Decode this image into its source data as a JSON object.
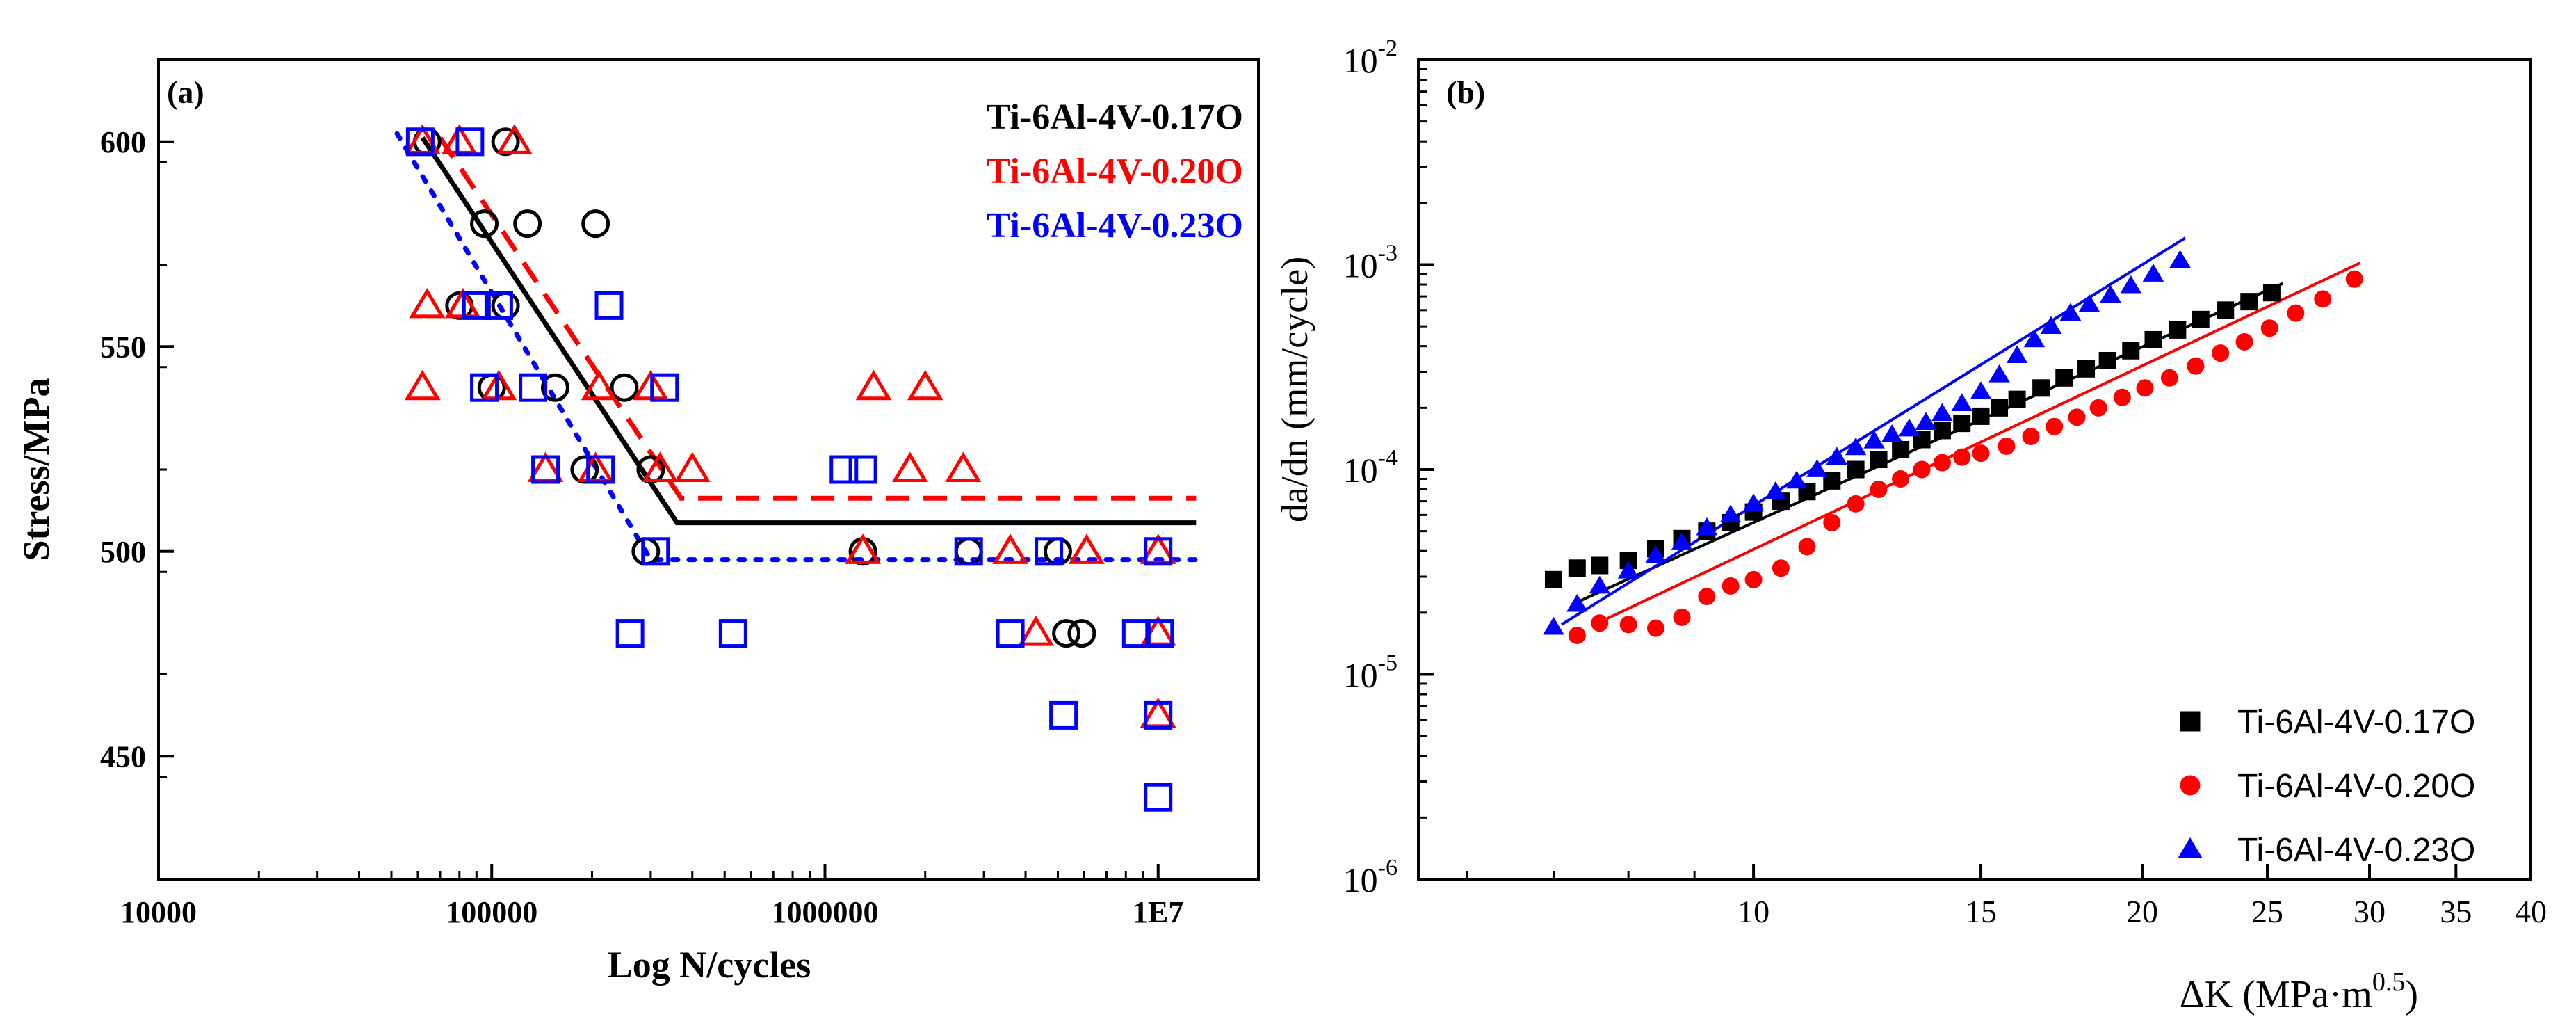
{
  "chart_data": [
    {
      "type": "scatter",
      "panel_label": "(a)",
      "title": "",
      "xlabel": "Log N/cycles",
      "ylabel": "Stress/MPa",
      "x_scale": "log",
      "xlim": [
        10000,
        20000000
      ],
      "ylim": [
        420,
        620
      ],
      "x_tick_values": [
        10000,
        100000,
        1000000,
        10000000
      ],
      "x_tick_labels": [
        "10000",
        "100000",
        "1000000",
        "1E7"
      ],
      "y_ticks": [
        450,
        500,
        550,
        600
      ],
      "grid": false,
      "legend_placement": "top-right",
      "series": [
        {
          "name": "Ti-6Al-4V-0.17O",
          "color": "#000000",
          "marker": "circle-open",
          "line_style": "solid",
          "points": [
            [
              64000,
              600
            ],
            [
              110000,
              600
            ],
            [
              95000,
              580
            ],
            [
              128000,
              580
            ],
            [
              205000,
              580
            ],
            [
              80000,
              560
            ],
            [
              110000,
              560
            ],
            [
              100000,
              540
            ],
            [
              155000,
              540
            ],
            [
              250000,
              540
            ],
            [
              190000,
              520
            ],
            [
              300000,
              520
            ],
            [
              290000,
              500
            ],
            [
              1300000,
              500
            ],
            [
              2700000,
              500
            ],
            [
              5000000,
              500
            ],
            [
              5300000,
              480
            ],
            [
              5900000,
              480
            ]
          ],
          "fit_line": [
            [
              62000,
              601
            ],
            [
              360000,
              507
            ],
            [
              13000000,
              507
            ]
          ]
        },
        {
          "name": "Ti-6Al-4V-0.20O",
          "color": "#ff0000",
          "marker": "triangle-open",
          "line_style": "dashed",
          "points": [
            [
              62000,
              600
            ],
            [
              80000,
              600
            ],
            [
              117000,
              600
            ],
            [
              64000,
              560
            ],
            [
              82000,
              560
            ],
            [
              62000,
              540
            ],
            [
              105000,
              540
            ],
            [
              210000,
              540
            ],
            [
              300000,
              540
            ],
            [
              1400000,
              540
            ],
            [
              2000000,
              540
            ],
            [
              145000,
              520
            ],
            [
              205000,
              520
            ],
            [
              320000,
              520
            ],
            [
              400000,
              520
            ],
            [
              1800000,
              520
            ],
            [
              2600000,
              520
            ],
            [
              1300000,
              500
            ],
            [
              3600000,
              500
            ],
            [
              6100000,
              500
            ],
            [
              10000000,
              500
            ],
            [
              4300000,
              480
            ],
            [
              10000000,
              480
            ],
            [
              10000000,
              460
            ]
          ],
          "fit_line": [
            [
              70000,
              601
            ],
            [
              370000,
              513
            ],
            [
              13000000,
              513
            ]
          ]
        },
        {
          "name": "Ti-6Al-4V-0.23O",
          "color": "#0000ff",
          "marker": "square-open",
          "line_style": "dotted",
          "points": [
            [
              61000,
              600
            ],
            [
              86000,
              600
            ],
            [
              90000,
              560
            ],
            [
              105000,
              560
            ],
            [
              225000,
              560
            ],
            [
              95000,
              540
            ],
            [
              133000,
              540
            ],
            [
              330000,
              540
            ],
            [
              145000,
              520
            ],
            [
              212000,
              520
            ],
            [
              1140000,
              520
            ],
            [
              1300000,
              520
            ],
            [
              310000,
              500
            ],
            [
              2700000,
              500
            ],
            [
              4700000,
              500
            ],
            [
              10000000,
              500
            ],
            [
              260000,
              480
            ],
            [
              530000,
              480
            ],
            [
              3600000,
              480
            ],
            [
              8600000,
              480
            ],
            [
              10100000,
              480
            ],
            [
              5200000,
              460
            ],
            [
              10000000,
              460
            ],
            [
              10000000,
              440
            ]
          ],
          "fit_line": [
            [
              52000,
              602
            ],
            [
              300000,
              498
            ],
            [
              13000000,
              498
            ]
          ]
        }
      ]
    },
    {
      "type": "scatter",
      "panel_label": "(b)",
      "title": "",
      "xlabel": "ΔK (MPa·m",
      "xlabel_superscript": "0.5",
      "xlabel_suffix": ")",
      "ylabel": "da/dn  (mm/cycle)",
      "x_scale": "log",
      "y_scale": "log",
      "xlim": [
        5.5,
        40
      ],
      "ylim": [
        1e-06,
        0.01
      ],
      "x_tick_values": [
        10,
        15,
        20,
        25,
        30,
        35,
        40
      ],
      "x_tick_labels": [
        "10",
        "15",
        "20",
        "25",
        "30",
        "35",
        "40"
      ],
      "y_tick_values": [
        1e-06,
        1e-05,
        0.0001,
        0.001,
        0.01
      ],
      "y_tick_base": "10",
      "y_tick_exponents": [
        "-6",
        "-5",
        "-4",
        "-3",
        "-2"
      ],
      "grid": false,
      "legend_placement": "bottom-right",
      "series": [
        {
          "name": "Ti-6Al-4V-0.17O",
          "color": "#000000",
          "marker": "square-filled",
          "points": [
            [
              7.0,
              2.9e-05
            ],
            [
              7.3,
              3.3e-05
            ],
            [
              7.6,
              3.4e-05
            ],
            [
              8.0,
              3.6e-05
            ],
            [
              8.4,
              4.1e-05
            ],
            [
              8.8,
              4.6e-05
            ],
            [
              9.2,
              5e-05
            ],
            [
              9.6,
              5.5e-05
            ],
            [
              10.0,
              6.2e-05
            ],
            [
              10.5,
              7e-05
            ],
            [
              11.0,
              7.8e-05
            ],
            [
              11.5,
              8.8e-05
            ],
            [
              12.0,
              0.0001
            ],
            [
              12.5,
              0.000112
            ],
            [
              13.0,
              0.000125
            ],
            [
              13.5,
              0.00014
            ],
            [
              14.0,
              0.000155
            ],
            [
              14.5,
              0.000168
            ],
            [
              15.0,
              0.000182
            ],
            [
              15.5,
              0.0002
            ],
            [
              16.0,
              0.00022
            ],
            [
              16.7,
              0.00025
            ],
            [
              17.4,
              0.00028
            ],
            [
              18.1,
              0.00031
            ],
            [
              18.8,
              0.00034
            ],
            [
              19.6,
              0.00038
            ],
            [
              20.4,
              0.00043
            ],
            [
              21.3,
              0.00048
            ],
            [
              22.2,
              0.00054
            ],
            [
              23.2,
              0.0006
            ],
            [
              24.2,
              0.00066
            ],
            [
              25.2,
              0.00073
            ]
          ],
          "fit_line": [
            [
              7.3,
              2.25e-05
            ],
            [
              25.7,
              0.00081
            ]
          ]
        },
        {
          "name": "Ti-6Al-4V-0.20O",
          "color": "#ff0000",
          "marker": "circle-filled",
          "points": [
            [
              7.3,
              1.55e-05
            ],
            [
              7.6,
              1.78e-05
            ],
            [
              8.0,
              1.75e-05
            ],
            [
              8.4,
              1.68e-05
            ],
            [
              8.8,
              1.9e-05
            ],
            [
              9.2,
              2.4e-05
            ],
            [
              9.6,
              2.7e-05
            ],
            [
              10.0,
              2.9e-05
            ],
            [
              10.5,
              3.3e-05
            ],
            [
              11.0,
              4.2e-05
            ],
            [
              11.5,
              5.5e-05
            ],
            [
              12.0,
              6.8e-05
            ],
            [
              12.5,
              8e-05
            ],
            [
              13.0,
              9e-05
            ],
            [
              13.5,
              0.0001
            ],
            [
              14.0,
              0.000108
            ],
            [
              14.5,
              0.000115
            ],
            [
              15.0,
              0.00012
            ],
            [
              15.7,
              0.00013
            ],
            [
              16.4,
              0.000145
            ],
            [
              17.1,
              0.000162
            ],
            [
              17.8,
              0.00018
            ],
            [
              18.5,
              0.0002
            ],
            [
              19.3,
              0.000225
            ],
            [
              20.1,
              0.00025
            ],
            [
              21.0,
              0.00028
            ],
            [
              22.0,
              0.00032
            ],
            [
              23.0,
              0.00037
            ],
            [
              24.0,
              0.00042
            ],
            [
              25.1,
              0.00049
            ],
            [
              26.3,
              0.00058
            ],
            [
              27.6,
              0.00068
            ],
            [
              29.2,
              0.00085
            ]
          ],
          "fit_line": [
            [
              7.6,
              1.8e-05
            ],
            [
              29.5,
              0.00102
            ]
          ]
        },
        {
          "name": "Ti-6Al-4V-0.23O",
          "color": "#0000ff",
          "marker": "triangle-filled",
          "points": [
            [
              7.0,
              1.7e-05
            ],
            [
              7.3,
              2.2e-05
            ],
            [
              7.6,
              2.7e-05
            ],
            [
              8.0,
              3.2e-05
            ],
            [
              8.4,
              3.8e-05
            ],
            [
              8.8,
              4.4e-05
            ],
            [
              9.2,
              5.2e-05
            ],
            [
              9.6,
              6e-05
            ],
            [
              10.0,
              6.8e-05
            ],
            [
              10.4,
              7.8e-05
            ],
            [
              10.8,
              8.8e-05
            ],
            [
              11.2,
              0.0001
            ],
            [
              11.6,
              0.000115
            ],
            [
              12.0,
              0.000128
            ],
            [
              12.4,
              0.000138
            ],
            [
              12.8,
              0.000148
            ],
            [
              13.2,
              0.000158
            ],
            [
              13.6,
              0.00017
            ],
            [
              14.0,
              0.000188
            ],
            [
              14.5,
              0.00021
            ],
            [
              15.0,
              0.00024
            ],
            [
              15.5,
              0.00029
            ],
            [
              16.0,
              0.00036
            ],
            [
              16.5,
              0.00043
            ],
            [
              17.0,
              0.0005
            ],
            [
              17.6,
              0.00058
            ],
            [
              18.2,
              0.00064
            ],
            [
              18.9,
              0.00071
            ],
            [
              19.6,
              0.00079
            ],
            [
              20.4,
              0.0009
            ],
            [
              21.4,
              0.00105
            ]
          ],
          "fit_line": [
            [
              7.1,
              1.75e-05
            ],
            [
              21.6,
              0.00135
            ]
          ]
        }
      ]
    }
  ]
}
